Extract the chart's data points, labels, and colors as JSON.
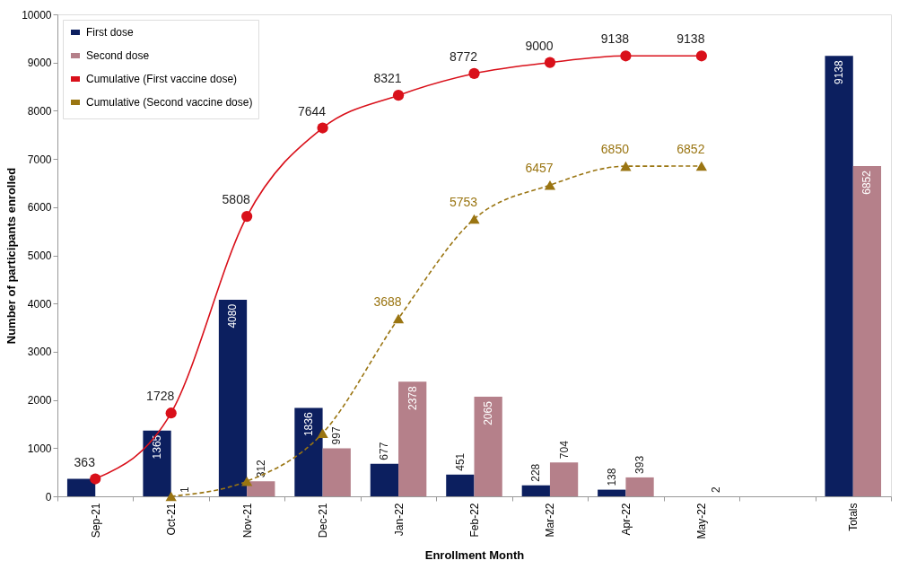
{
  "chart_data": {
    "type": "bar",
    "xlabel": "Enrollment Month",
    "ylabel": "Number of participants enrolled",
    "categories": [
      "Sep-21",
      "Oct-21",
      "Nov-21",
      "Dec-21",
      "Jan-22",
      "Feb-22",
      "Mar-22",
      "Apr-22",
      "May-22",
      null,
      "Totals"
    ],
    "series": [
      {
        "name": "First dose",
        "color": "#0c1f5f",
        "values": [
          363,
          1365,
          4080,
          1836,
          677,
          451,
          228,
          138,
          null,
          null,
          9138
        ],
        "value_labels": [
          null,
          "1365",
          "4080",
          "1836",
          "677",
          "451",
          "228",
          "138",
          null,
          null,
          "9138"
        ]
      },
      {
        "name": "Second dose",
        "color": "#b5808a",
        "values": [
          null,
          1,
          312,
          997,
          2378,
          2065,
          704,
          393,
          2,
          null,
          6852
        ],
        "value_labels": [
          null,
          "1",
          "312",
          "997",
          "2378",
          "2065",
          "704",
          "393",
          "2",
          null,
          "6852"
        ]
      },
      {
        "name": "Cumulative (First vaccine dose)",
        "type": "line",
        "color": "#d9101a",
        "marker": "circle",
        "line_style": "solid",
        "values": [
          363,
          1728,
          5808,
          7644,
          8321,
          8772,
          9000,
          9138,
          9138,
          null,
          null
        ],
        "value_labels": [
          "363",
          "1728",
          "5808",
          "7644",
          "8321",
          "8772",
          "9000",
          "9138",
          "9138",
          null,
          null
        ]
      },
      {
        "name": "Cumulative (Second vaccine dose)",
        "type": "line",
        "color": "#9a7512",
        "marker": "triangle",
        "line_style": "dashed",
        "values": [
          null,
          1,
          313,
          1310,
          3688,
          5753,
          6457,
          6850,
          6852,
          null,
          null
        ],
        "value_labels": [
          null,
          null,
          null,
          null,
          "3688",
          "5753",
          "6457",
          "6850",
          "6852",
          null,
          null
        ]
      }
    ],
    "ylim": [
      0,
      10000
    ],
    "yticks": [
      0,
      1000,
      2000,
      3000,
      4000,
      5000,
      6000,
      7000,
      8000,
      9000,
      10000
    ],
    "grid": false,
    "legend": "top left"
  }
}
